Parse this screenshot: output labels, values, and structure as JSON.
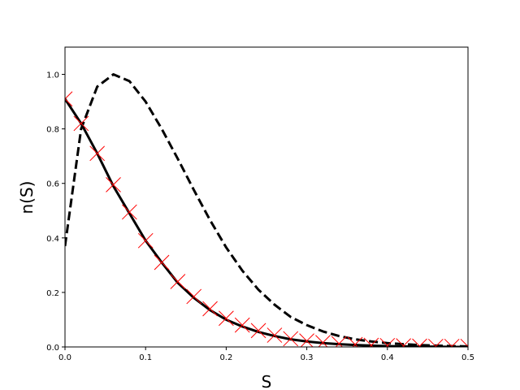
{
  "chart_data": {
    "type": "line",
    "title": "",
    "xlabel": "S",
    "ylabel": "n(S)",
    "xlim": [
      0.0,
      0.5
    ],
    "ylim": [
      0.0,
      1.1
    ],
    "grid": false,
    "x_ticks": [
      "0.0",
      "0.1",
      "0.2",
      "0.3",
      "0.4",
      "0.5"
    ],
    "y_ticks": [
      "0.0",
      "0.2",
      "0.4",
      "0.6",
      "0.8",
      "1.0"
    ],
    "series": [
      {
        "style": "solid",
        "color": "#000000",
        "x": [
          0.0,
          0.02,
          0.04,
          0.06,
          0.08,
          0.1,
          0.12,
          0.14,
          0.16,
          0.18,
          0.2,
          0.22,
          0.24,
          0.26,
          0.28,
          0.3,
          0.32,
          0.34,
          0.36,
          0.38,
          0.4,
          0.42,
          0.44,
          0.46,
          0.48,
          0.5
        ],
        "values": [
          0.91,
          0.82,
          0.71,
          0.59,
          0.49,
          0.39,
          0.31,
          0.235,
          0.18,
          0.135,
          0.1,
          0.075,
          0.055,
          0.04,
          0.028,
          0.02,
          0.014,
          0.01,
          0.007,
          0.005,
          0.003,
          0.002,
          0.001,
          0.001,
          0.0,
          0.0
        ]
      },
      {
        "style": "dashed",
        "color": "#000000",
        "x": [
          0.0,
          0.02,
          0.04,
          0.06,
          0.08,
          0.1,
          0.12,
          0.14,
          0.16,
          0.18,
          0.2,
          0.22,
          0.24,
          0.26,
          0.28,
          0.3,
          0.32,
          0.34,
          0.36,
          0.38,
          0.4,
          0.42,
          0.44,
          0.46,
          0.48,
          0.5
        ],
        "values": [
          0.37,
          0.8,
          0.955,
          1.0,
          0.975,
          0.9,
          0.8,
          0.69,
          0.575,
          0.465,
          0.365,
          0.28,
          0.21,
          0.155,
          0.11,
          0.08,
          0.057,
          0.04,
          0.028,
          0.02,
          0.014,
          0.01,
          0.007,
          0.005,
          0.003,
          0.002
        ]
      },
      {
        "style": "markers-x",
        "color": "#ff0000",
        "x": [
          0.0,
          0.02,
          0.04,
          0.06,
          0.08,
          0.1,
          0.12,
          0.14,
          0.16,
          0.18,
          0.2,
          0.22,
          0.24,
          0.26,
          0.28,
          0.3,
          0.32,
          0.34,
          0.36,
          0.38,
          0.4,
          0.42,
          0.44,
          0.46,
          0.48,
          0.5
        ],
        "values": [
          0.91,
          0.82,
          0.71,
          0.595,
          0.495,
          0.39,
          0.31,
          0.24,
          0.185,
          0.14,
          0.105,
          0.08,
          0.06,
          0.043,
          0.03,
          0.022,
          0.016,
          0.012,
          0.009,
          0.006,
          0.005,
          0.004,
          0.003,
          0.002,
          0.002,
          0.002
        ]
      }
    ]
  }
}
